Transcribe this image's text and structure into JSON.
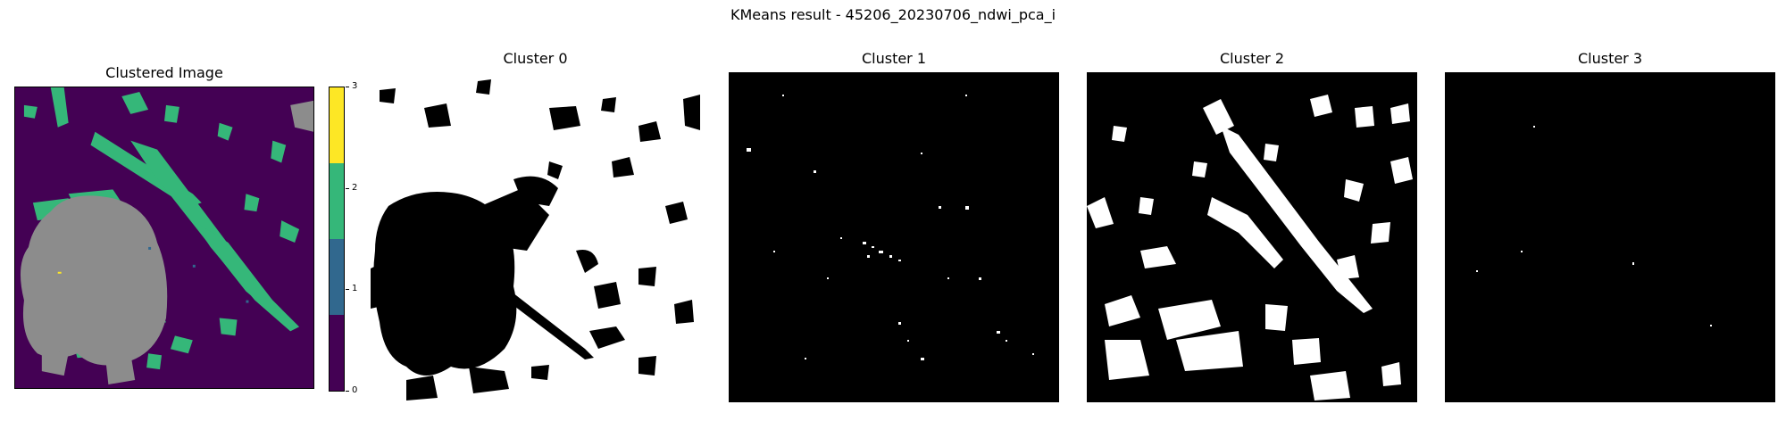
{
  "figure": {
    "title": "KMeans result - 45206_20230706_ndwi_pca_i"
  },
  "panels": [
    {
      "title": "Clustered Image"
    },
    {
      "title": "Cluster 0"
    },
    {
      "title": "Cluster 1"
    },
    {
      "title": "Cluster 2"
    },
    {
      "title": "Cluster 3"
    }
  ],
  "colorbar": {
    "ticks": [
      "0",
      "1",
      "2",
      "3"
    ],
    "colors": [
      "#440154",
      "#31688e",
      "#35b779",
      "#fde725"
    ]
  },
  "colors": {
    "gray_overlay": "#8c8c8c",
    "mask_black": "#000000",
    "mask_white": "#ffffff"
  }
}
